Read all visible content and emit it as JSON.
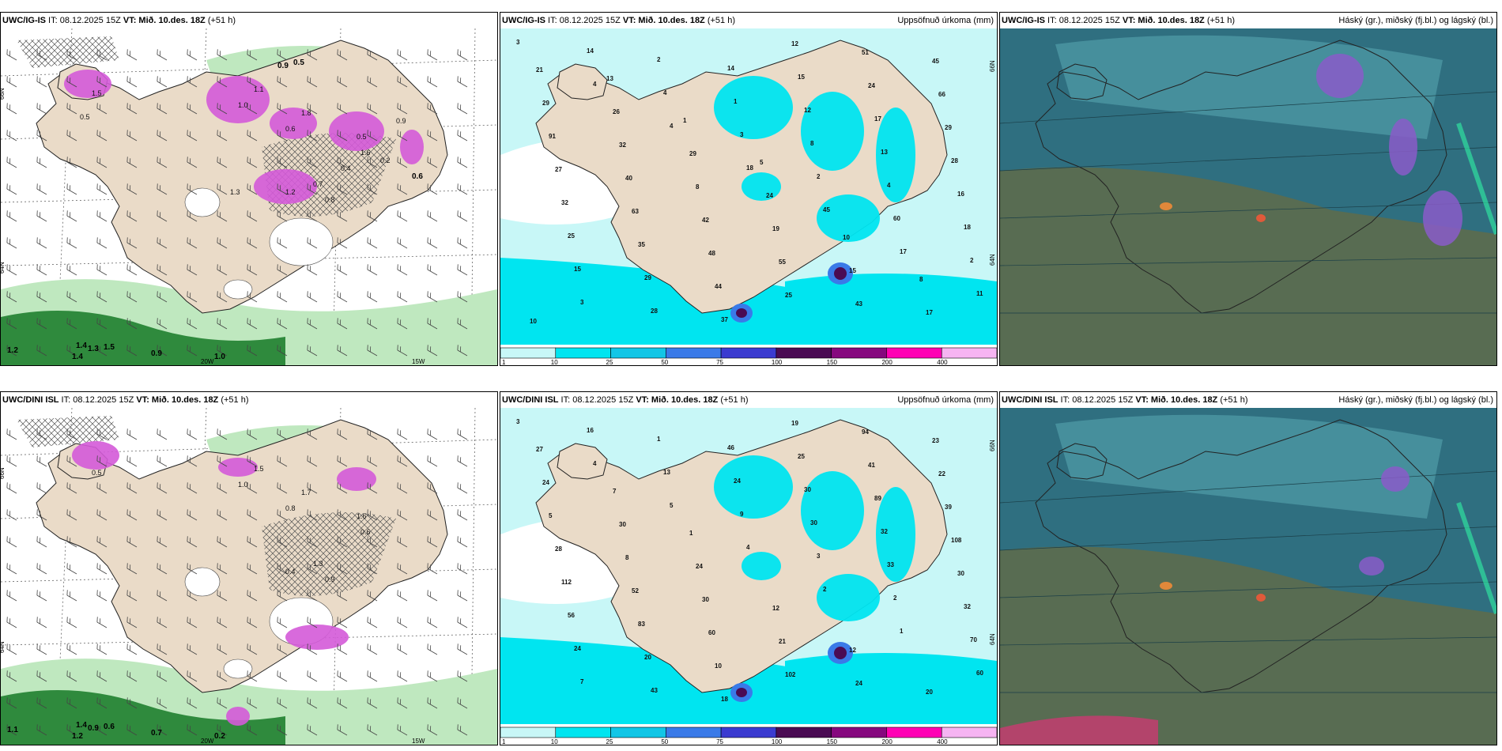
{
  "colors": {
    "land": "#eadbc8",
    "sea": "#ffffff",
    "precip_light": "#c8f7f7",
    "precip_cyan": "#00e5f0",
    "precip_mid": "#12c6e6",
    "snow_magenta": "#d45ad8",
    "green_dark": "#2f8a3d",
    "green_light": "#bfe8bf",
    "cloud_teal": "#2f6f80",
    "cloud_olive": "#5d6c4c"
  },
  "colorbar": {
    "labels": [
      "1",
      "10",
      "25",
      "50",
      "75",
      "100",
      "150",
      "200",
      "400"
    ],
    "colors": [
      "#c8f7f7",
      "#00e5f0",
      "#12c6e6",
      "#3a7ae8",
      "#3b3bd0",
      "#4a0b53",
      "#86087e",
      "#ff00b4",
      "#f6b4f2"
    ]
  },
  "panels": [
    {
      "id": "p1",
      "model": "UWC/IG-IS",
      "it": " IT: 08.12.2025 15Z ",
      "vt_label": "VT:",
      "vt": " Mið. 10.des. 18Z",
      "lead": " (+51 h)",
      "title_right": "",
      "type": "wind",
      "lat_labels": [
        "66N",
        "64N"
      ],
      "lon_labels": [
        "20W",
        "15W"
      ],
      "sea_labels": [
        "1.2",
        "1.4",
        "1.4",
        "1.3",
        "1.5",
        "0.9",
        "1.0",
        "0.9",
        "0.5",
        "0.6"
      ],
      "land_labels": [
        "1.5",
        "1.0",
        "1.1",
        "0.6",
        "1.8",
        "0.5",
        "1.6",
        "1.2",
        "0.7",
        "0.8",
        "0.5",
        "0.4",
        "0.2",
        "1.3",
        "0.9"
      ]
    },
    {
      "id": "p2",
      "model": "UWC/IG-IS",
      "it": " IT: 08.12.2025 15Z ",
      "vt_label": "VT:",
      "vt": " Mið. 10.des. 18Z",
      "lead": " (+51 h)",
      "title_right": "Uppsöfnuð úrkoma (mm)",
      "type": "precip",
      "lat_labels": [
        "66N",
        "64N"
      ],
      "numbers": [
        "3",
        "4",
        "4",
        "18",
        "45",
        "17",
        "11",
        "14",
        "4",
        "3",
        "2",
        "60",
        "2",
        "3",
        "2",
        "1",
        "8",
        "4",
        "18",
        "15",
        "28",
        "14",
        "12",
        "13",
        "16",
        "25",
        "29",
        "37",
        "15",
        "17",
        "28",
        "32",
        "35",
        "44",
        "12",
        "24",
        "29",
        "27",
        "63",
        "48",
        "25",
        "51",
        "66",
        "91",
        "40",
        "42",
        "55",
        "43",
        "45",
        "29",
        "32",
        "8",
        "19",
        "15",
        "17",
        "21",
        "26",
        "29",
        "24",
        "10",
        "8",
        "10",
        "13",
        "1",
        "5"
      ]
    },
    {
      "id": "p3",
      "model": "UWC/IG-IS",
      "it": " IT: 08.12.2025 15Z ",
      "vt_label": "VT:",
      "vt": " Mið. 10.des. 18Z",
      "lead": " (+51 h)",
      "title_right": "Háský (gr.), miðský (fj.bl.) og lágský (bl.)",
      "type": "cloud"
    },
    {
      "id": "p4",
      "model": "UWC/DINI ISL",
      "it": " IT: 08.12.2025 15Z ",
      "vt_label": "VT:",
      "vt": " Mið. 10.des. 18Z",
      "lead": " (+51 h)",
      "title_right": "",
      "type": "wind",
      "lat_labels": [
        "66N",
        "64N"
      ],
      "lon_labels": [
        "20W",
        "15W"
      ],
      "sea_labels": [
        "1.1",
        "1.2",
        "1.4",
        "0.9",
        "0.6",
        "0.7",
        "0.2"
      ],
      "land_labels": [
        "0.5",
        "1.0",
        "1.5",
        "0.8",
        "1.7",
        "1.6",
        "0.6",
        "0.4",
        "1.3",
        "0.9"
      ]
    },
    {
      "id": "p5",
      "model": "UWC/DINI ISL",
      "it": " IT: 08.12.2025 15Z ",
      "vt_label": "VT:",
      "vt": " Mið. 10.des. 18Z",
      "lead": " (+51 h)",
      "title_right": "Uppsöfnuð úrkoma (mm)",
      "type": "precip",
      "lat_labels": [
        "66N",
        "64N"
      ],
      "numbers": [
        "3",
        "4",
        "5",
        "4",
        "2",
        "1",
        "60",
        "16",
        "13",
        "9",
        "3",
        "2",
        "70",
        "7",
        "1",
        "24",
        "30",
        "33",
        "32",
        "24",
        "43",
        "46",
        "30",
        "32",
        "30",
        "56",
        "20",
        "18",
        "25",
        "89",
        "108",
        "112",
        "83",
        "10",
        "19",
        "41",
        "39",
        "28",
        "52",
        "60",
        "102",
        "94",
        "22",
        "5",
        "8",
        "30",
        "21",
        "24",
        "23",
        "24",
        "30",
        "24",
        "12",
        "12",
        "20",
        "27",
        "7",
        "1"
      ]
    },
    {
      "id": "p6",
      "model": "UWC/DINI ISL",
      "it": " IT: 08.12.2025 15Z ",
      "vt_label": "VT:",
      "vt": " Mið. 10.des. 18Z",
      "lead": " (+51 h)",
      "title_right": "Háský (gr.), miðský (fj.bl.) og lágský (bl.)",
      "type": "cloud"
    }
  ]
}
